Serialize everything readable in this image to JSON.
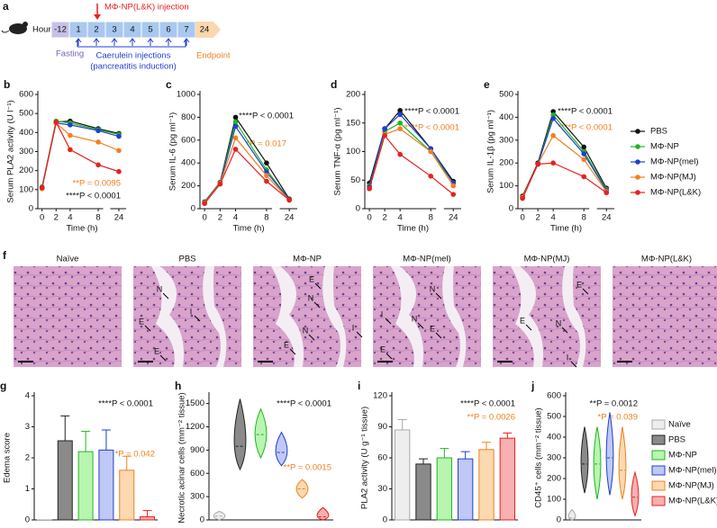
{
  "timeline": {
    "panel": "a",
    "hour_label": "Hour",
    "hours": [
      "-12",
      "1",
      "2",
      "3",
      "4",
      "5",
      "6",
      "7",
      "24"
    ],
    "injection": "MΦ-NP(L&K) injection",
    "fasting": "Fasting",
    "caerulein": "Caerulein injections",
    "caerulein_note": "(pancreatitis induction)",
    "endpoint": "Endpoint"
  },
  "histology": {
    "panel": "f",
    "titles": [
      "Naïve",
      "PBS",
      "MΦ-NP",
      "MΦ-NP(mel)",
      "MΦ-NP(MJ)",
      "MΦ-NP(L&K)"
    ],
    "letters": [
      "N",
      "I",
      "E"
    ]
  },
  "chart_data": [
    {
      "panel": "b",
      "type": "line",
      "ylabel": "Serum PLA2 activity (U l⁻¹)",
      "xlabel": "Time (h)",
      "x": [
        0,
        2,
        4,
        8,
        24
      ],
      "xticks": [
        0,
        2,
        4,
        8,
        24
      ],
      "xlim": [
        -0.6,
        25
      ],
      "axis_break": [
        8,
        24
      ],
      "ylim": [
        0,
        600
      ],
      "yticks": [
        0,
        100,
        200,
        300,
        400,
        500,
        600
      ],
      "series": [
        {
          "color": "#111111",
          "values": [
            110,
            455,
            460,
            420,
            395
          ]
        },
        {
          "color": "#22b422",
          "values": [
            115,
            460,
            450,
            415,
            390
          ]
        },
        {
          "color": "#1f3fd0",
          "values": [
            110,
            450,
            440,
            410,
            380
          ]
        },
        {
          "color": "#f08020",
          "values": [
            105,
            450,
            385,
            350,
            305
          ]
        },
        {
          "color": "#e82020",
          "values": [
            110,
            455,
            310,
            230,
            195
          ]
        }
      ],
      "annotations": [
        {
          "text": "**P = 0.0095",
          "color": "#f08020"
        },
        {
          "text": "****P < 0.0001",
          "color": "#111111"
        }
      ]
    },
    {
      "panel": "c",
      "type": "line",
      "ylabel": "Serum IL-6 (pg ml⁻¹)",
      "xlabel": "Time (h)",
      "x": [
        0,
        2,
        4,
        8,
        24
      ],
      "xticks": [
        0,
        2,
        4,
        8,
        24
      ],
      "xlim": [
        -0.6,
        25
      ],
      "axis_break": [
        8,
        24
      ],
      "ylim": [
        0,
        1000
      ],
      "yticks": [
        0,
        200,
        400,
        600,
        800,
        1000
      ],
      "series": [
        {
          "color": "#111111",
          "values": [
            60,
            230,
            800,
            400,
            85
          ]
        },
        {
          "color": "#22b422",
          "values": [
            55,
            225,
            760,
            340,
            80
          ]
        },
        {
          "color": "#1f3fd0",
          "values": [
            50,
            220,
            720,
            320,
            80
          ]
        },
        {
          "color": "#f08020",
          "values": [
            50,
            220,
            620,
            290,
            75
          ]
        },
        {
          "color": "#e82020",
          "values": [
            45,
            215,
            520,
            240,
            75
          ]
        }
      ],
      "annotations": [
        {
          "text": "****P < 0.0001",
          "color": "#111111"
        },
        {
          "text": "*P = 0.017",
          "color": "#f08020"
        }
      ]
    },
    {
      "panel": "d",
      "type": "line",
      "ylabel": "Serum TNF-α (pg ml⁻¹)",
      "xlabel": "Time (h)",
      "x": [
        0,
        2,
        4,
        8,
        24
      ],
      "xticks": [
        0,
        2,
        4,
        8,
        24
      ],
      "xlim": [
        -0.6,
        25
      ],
      "axis_break": [
        8,
        24
      ],
      "ylim": [
        0,
        200
      ],
      "yticks": [
        0,
        50,
        100,
        150,
        200
      ],
      "series": [
        {
          "color": "#111111",
          "values": [
            45,
            140,
            172,
            105,
            48
          ]
        },
        {
          "color": "#22b422",
          "values": [
            40,
            135,
            150,
            100,
            45
          ]
        },
        {
          "color": "#1f3fd0",
          "values": [
            38,
            140,
            165,
            105,
            45
          ]
        },
        {
          "color": "#f08020",
          "values": [
            35,
            130,
            140,
            100,
            40
          ]
        },
        {
          "color": "#e82020",
          "values": [
            35,
            128,
            95,
            57,
            25
          ]
        }
      ],
      "annotations": [
        {
          "text": "****P < 0.0001",
          "color": "#111111"
        },
        {
          "text": "****P < 0.0001",
          "color": "#f08020"
        }
      ]
    },
    {
      "panel": "e",
      "type": "line",
      "ylabel": "Serum IL-1β (pg ml⁻¹)",
      "xlabel": "Time (h)",
      "x": [
        0,
        2,
        4,
        8,
        24
      ],
      "xticks": [
        0,
        2,
        4,
        8,
        24
      ],
      "xlim": [
        -0.6,
        25
      ],
      "axis_break": [
        8,
        24
      ],
      "ylim": [
        0,
        500
      ],
      "yticks": [
        0,
        100,
        200,
        300,
        400,
        500
      ],
      "legend": true,
      "series": [
        {
          "name": "PBS",
          "color": "#111111",
          "values": [
            55,
            200,
            425,
            270,
            90
          ]
        },
        {
          "name": "MΦ-NP",
          "color": "#22b422",
          "values": [
            50,
            195,
            410,
            250,
            85
          ]
        },
        {
          "name": "MΦ-NP(mel)",
          "color": "#1f3fd0",
          "values": [
            50,
            195,
            395,
            240,
            80
          ]
        },
        {
          "name": "MΦ-NP(MJ)",
          "color": "#f08020",
          "values": [
            50,
            195,
            320,
            215,
            75
          ]
        },
        {
          "name": "MΦ-NP(L&K)",
          "color": "#e82020",
          "values": [
            45,
            195,
            200,
            140,
            70
          ]
        }
      ],
      "annotations": [
        {
          "text": "****P < 0.0001",
          "color": "#111111"
        },
        {
          "text": "****P < 0.0001",
          "color": "#f08020"
        }
      ]
    },
    {
      "panel": "g",
      "type": "bar",
      "ylabel": "Edema score",
      "ylim": [
        0,
        4
      ],
      "yticks": [
        0,
        1,
        2,
        3,
        4
      ],
      "values": [
        0,
        2.55,
        2.2,
        2.25,
        1.6,
        0.1
      ],
      "errors": [
        0,
        0.8,
        0.65,
        0.65,
        0.45,
        0.2
      ],
      "colors": [
        "#eeeeee",
        "#8a8a8a",
        "#b8f5b0",
        "#c0c8f5",
        "#fcd9b0",
        "#f8b0b0"
      ],
      "edge_colors": [
        "#aaaaaa",
        "#222222",
        "#22b422",
        "#1f3fd0",
        "#f08020",
        "#e82020"
      ],
      "annotations": [
        {
          "text": "****P < 0.0001",
          "color": "#111111"
        },
        {
          "text": "*P = 0.042",
          "color": "#f08020"
        }
      ]
    },
    {
      "panel": "h",
      "type": "violin",
      "ylabel": "Necrotic acinar cells (mm⁻² tissue)",
      "ylim": [
        0,
        1600
      ],
      "yticks": [
        0,
        300,
        600,
        900,
        1200,
        1500
      ],
      "values": [
        50,
        950,
        1100,
        870,
        400,
        40
      ],
      "ranges": [
        [
          0,
          110
        ],
        [
          650,
          1560
        ],
        [
          800,
          1430
        ],
        [
          700,
          1130
        ],
        [
          280,
          520
        ],
        [
          0,
          160
        ]
      ],
      "colors": [
        "#eeeeee",
        "#8a8a8a",
        "#b8f5b0",
        "#c0c8f5",
        "#fcd9b0",
        "#f8b0b0"
      ],
      "edge_colors": [
        "#aaaaaa",
        "#222222",
        "#22b422",
        "#1f3fd0",
        "#f08020",
        "#e82020"
      ],
      "annotations": [
        {
          "text": "****P < 0.0001",
          "color": "#111111"
        },
        {
          "text": "**P = 0.0015",
          "color": "#f08020"
        }
      ]
    },
    {
      "panel": "i",
      "type": "bar",
      "ylabel": "PLA2 activity (U g⁻¹ tissue)",
      "ylim": [
        0,
        120
      ],
      "yticks": [
        0,
        30,
        60,
        90,
        120
      ],
      "values": [
        87,
        54,
        60,
        59,
        68,
        79
      ],
      "errors": [
        10,
        5,
        9,
        7,
        7,
        5
      ],
      "colors": [
        "#eeeeee",
        "#8a8a8a",
        "#b8f5b0",
        "#c0c8f5",
        "#fcd9b0",
        "#f8b0b0"
      ],
      "edge_colors": [
        "#aaaaaa",
        "#222222",
        "#22b422",
        "#1f3fd0",
        "#f08020",
        "#e82020"
      ],
      "annotations": [
        {
          "text": "****P < 0.0001",
          "color": "#111111"
        },
        {
          "text": "**P = 0.0026",
          "color": "#f08020"
        }
      ]
    },
    {
      "panel": "j",
      "type": "violin",
      "ylabel": "CD45⁺ cells (mm⁻² tissue)",
      "ylim": [
        0,
        600
      ],
      "yticks": [
        0,
        100,
        200,
        300,
        400,
        500,
        600
      ],
      "values": [
        10,
        270,
        270,
        300,
        240,
        110
      ],
      "ranges": [
        [
          0,
          50
        ],
        [
          130,
          450
        ],
        [
          100,
          450
        ],
        [
          120,
          520
        ],
        [
          100,
          450
        ],
        [
          20,
          230
        ]
      ],
      "legend": true,
      "categories": [
        "Naïve",
        "PBS",
        "MΦ-NP",
        "MΦ-NP(mel)",
        "MΦ-NP(MJ)",
        "MΦ-NP(L&K)"
      ],
      "colors": [
        "#eeeeee",
        "#8a8a8a",
        "#b8f5b0",
        "#c0c8f5",
        "#fcd9b0",
        "#f8b0b0"
      ],
      "edge_colors": [
        "#aaaaaa",
        "#222222",
        "#22b422",
        "#1f3fd0",
        "#f08020",
        "#e82020"
      ],
      "annotations": [
        {
          "text": "**P = 0.0012",
          "color": "#111111"
        },
        {
          "text": "*P = 0.039",
          "color": "#f08020"
        }
      ]
    }
  ]
}
